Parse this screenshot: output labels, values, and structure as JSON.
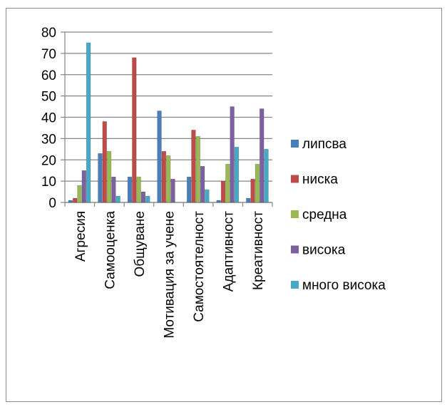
{
  "chart_data": {
    "type": "bar",
    "title": "",
    "xlabel": "",
    "ylabel": "",
    "ylim": [
      0,
      80
    ],
    "yticks": [
      "0",
      "10",
      "20",
      "30",
      "40",
      "50",
      "60",
      "70",
      "80"
    ],
    "grid": true,
    "legend_position": "right",
    "categories": [
      "Агресия",
      "Самооценка",
      "Общуване",
      "Мотивация за учене",
      "Самостоятелност",
      "Адаптивност",
      "Креативност"
    ],
    "series": [
      {
        "name": "липсва",
        "color": "#4a7ebb",
        "values": [
          1,
          23,
          12,
          43,
          12,
          1,
          2
        ]
      },
      {
        "name": "ниска",
        "color": "#be4b48",
        "values": [
          2,
          38,
          68,
          24,
          34,
          10,
          11
        ]
      },
      {
        "name": "средна",
        "color": "#98b954",
        "values": [
          8,
          24,
          12,
          22,
          31,
          18,
          18
        ]
      },
      {
        "name": "висока",
        "color": "#7d60a0",
        "values": [
          15,
          12,
          5,
          11,
          17,
          45,
          44
        ]
      },
      {
        "name": "много висока",
        "color": "#46aac5",
        "values": [
          75,
          3,
          3,
          0,
          6,
          26,
          25
        ]
      }
    ]
  }
}
